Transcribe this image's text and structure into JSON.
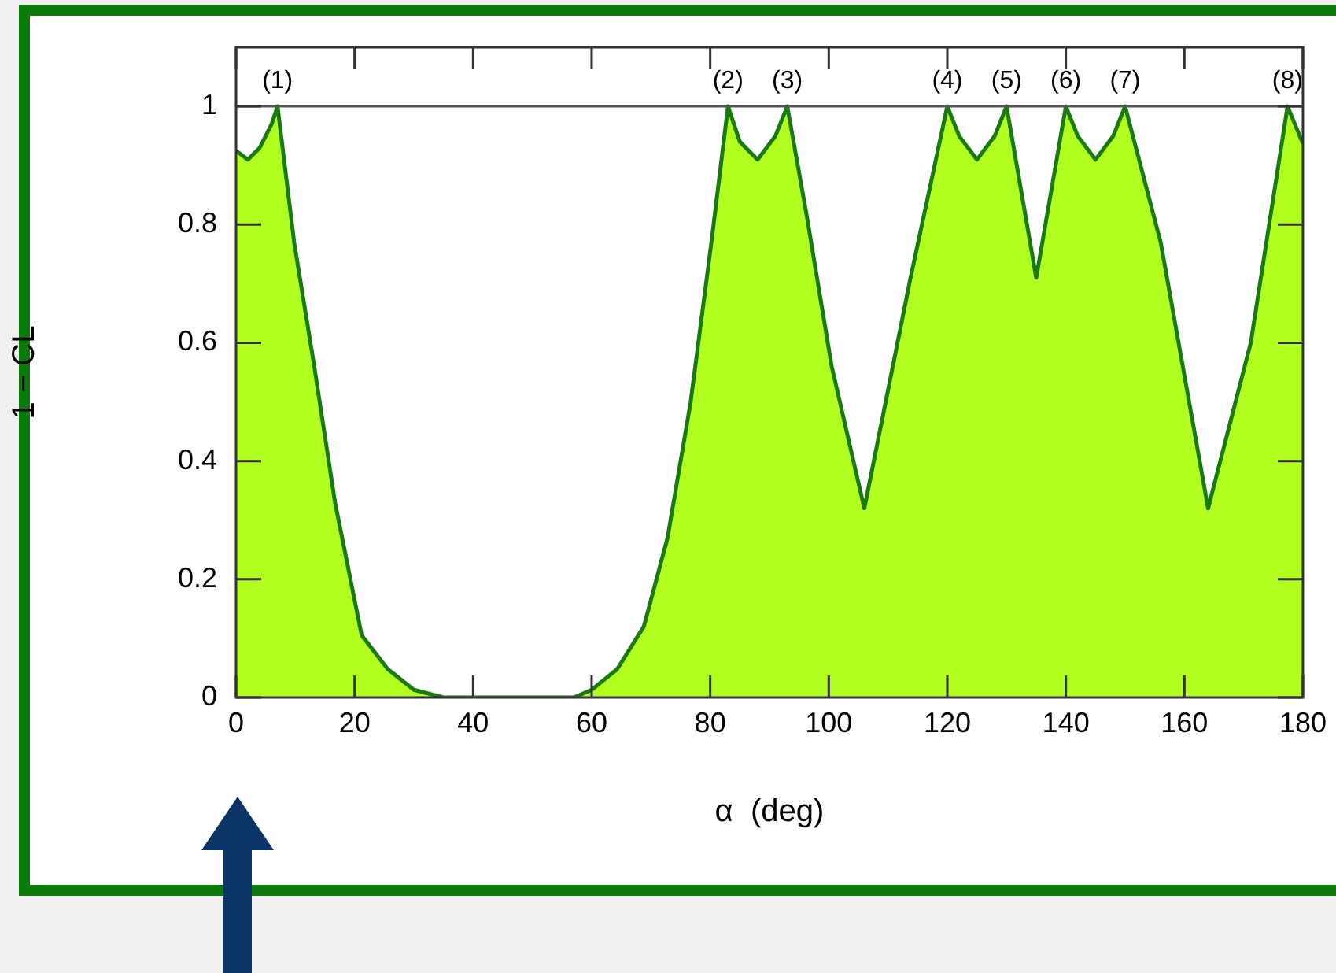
{
  "chart_data": {
    "type": "area",
    "xlabel": "α  (deg)",
    "ylabel": "1 − CL",
    "x": [
      0,
      2,
      4,
      6,
      7,
      9.8,
      13.2,
      16.7,
      21.2,
      25.6,
      30,
      35,
      57,
      60,
      64.3,
      68.8,
      72.8,
      76.7,
      80.2,
      83,
      85,
      88,
      91,
      93,
      96.2,
      100.5,
      106,
      113.8,
      120,
      122,
      125,
      128,
      130,
      135,
      140,
      142,
      145,
      148,
      150,
      156,
      164,
      171.2,
      177.4,
      180
    ],
    "series": [
      {
        "color": "#b0ff1e",
        "values": [
          0.925,
          0.91,
          0.93,
          0.97,
          1,
          0.77,
          0.56,
          0.33,
          0.105,
          0.048,
          0.013,
          0,
          0,
          0.013,
          0.048,
          0.12,
          0.27,
          0.5,
          0.77,
          1,
          0.94,
          0.91,
          0.95,
          1,
          0.82,
          0.56,
          0.32,
          0.71,
          1,
          0.95,
          0.91,
          0.95,
          1,
          0.71,
          1,
          0.95,
          0.91,
          0.95,
          1,
          0.77,
          0.32,
          0.6,
          1,
          0.937
        ]
      }
    ],
    "xlim": [
      0,
      180
    ],
    "xticks": [
      0,
      20,
      40,
      60,
      80,
      100,
      120,
      140,
      160,
      180
    ],
    "ylim": [
      0,
      1.1
    ],
    "yticks": [
      0,
      0.2,
      0.4,
      0.6,
      0.8,
      1
    ],
    "grid": false,
    "legend": false,
    "marker": "none",
    "line_style": "solid",
    "ref_lines": [
      {
        "axis": "y",
        "value": 1,
        "color": "#555555"
      }
    ],
    "annotations": [
      {
        "text": "(1)",
        "x": 7,
        "y": 1
      },
      {
        "text": "(2)",
        "x": 83,
        "y": 1
      },
      {
        "text": "(3)",
        "x": 93,
        "y": 1
      },
      {
        "text": "(4)",
        "x": 120,
        "y": 1
      },
      {
        "text": "(5)",
        "x": 130,
        "y": 1
      },
      {
        "text": "(6)",
        "x": 140,
        "y": 1
      },
      {
        "text": "(7)",
        "x": 150,
        "y": 1
      },
      {
        "text": "(8)",
        "x": 177.4,
        "y": 1
      }
    ]
  }
}
